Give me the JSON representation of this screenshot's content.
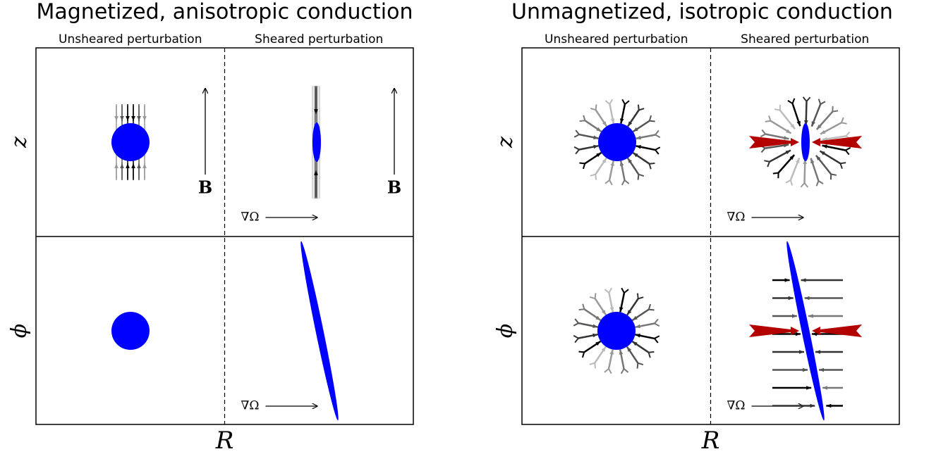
{
  "panels": [
    {
      "title": "Magnetized, anisotropic conduction",
      "left_label": "Unsheared perturbation",
      "right_label": "Sheared perturbation",
      "row_labels": [
        "z",
        "ϕ"
      ],
      "x_label": "R",
      "field_labels": [
        "B",
        "B"
      ],
      "shear_labels": [
        "∇Ω",
        "∇Ω"
      ]
    },
    {
      "title": "Unmagnetized, isotropic conduction",
      "left_label": "Unsheared perturbation",
      "right_label": "Sheared perturbation",
      "row_labels": [
        "z",
        "ϕ"
      ],
      "x_label": "R",
      "shear_labels": [
        "∇Ω",
        "∇Ω"
      ]
    }
  ]
}
